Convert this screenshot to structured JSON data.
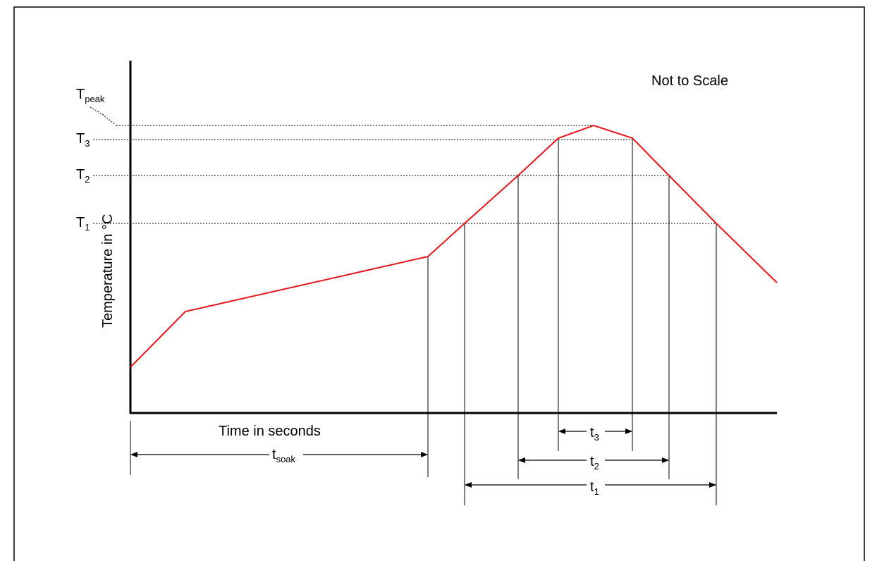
{
  "note": "Not to Scale",
  "axes": {
    "y_label": "Temperature in °C",
    "x_label": "Time in seconds"
  },
  "temperature_levels": [
    {
      "id": "peak",
      "base": "T",
      "sub": "peak"
    },
    {
      "id": "t3",
      "base": "T",
      "sub": "3"
    },
    {
      "id": "t2",
      "base": "T",
      "sub": "2"
    },
    {
      "id": "t1",
      "base": "T",
      "sub": "1"
    }
  ],
  "durations": [
    {
      "id": "soak",
      "base": "t",
      "sub": "soak"
    },
    {
      "id": "d3",
      "base": "t",
      "sub": "3"
    },
    {
      "id": "d2",
      "base": "t",
      "sub": "2"
    },
    {
      "id": "d1",
      "base": "t",
      "sub": "1"
    }
  ],
  "colors": {
    "profile": "#e8141c",
    "axis": "#000000",
    "guides": "#000000",
    "frame": "#000000"
  }
}
